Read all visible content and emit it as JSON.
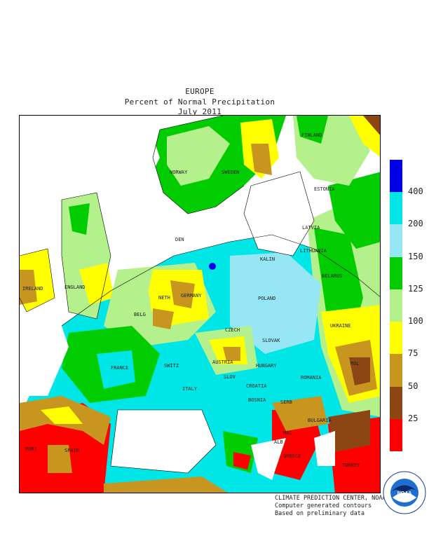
{
  "title": {
    "line1": "EUROPE",
    "line2": "Percent of Normal Precipitation",
    "line3": "July 2011"
  },
  "legend": {
    "ticks": [
      "400",
      "200",
      "150",
      "125",
      "100",
      "75",
      "50",
      "25"
    ],
    "colors": [
      "#0000e6",
      "#00e6e6",
      "#96e6f5",
      "#00cc00",
      "#b4f08c",
      "#ffff00",
      "#c8961e",
      "#8c4614",
      "#ff0000"
    ]
  },
  "countries": {
    "finland": "FINLAND",
    "norway": "NORWAY",
    "sweden": "SWEDEN",
    "estonia": "ESTONIA",
    "latvia": "LATVIA",
    "lithuania": "LITHUANIA",
    "kalin": "KALIN",
    "belarus": "BELARUS",
    "den": "DEN",
    "ireland": "IRELAND",
    "england": "ENGLAND",
    "neth": "NETH",
    "germany": "GERMANY",
    "poland": "POLAND",
    "belg": "BELG",
    "czech": "CZECH",
    "slovak": "SLOVAK",
    "ukraine": "UKRAINE",
    "mol": "MOL",
    "france": "FRANCE",
    "switz": "SWITZ",
    "austria": "AUSTRIA",
    "hungary": "HUNGARY",
    "romania": "ROMANIA",
    "slov": "SLOV",
    "croatia": "CROATIA",
    "italy": "ITALY",
    "bosnia": "BOSNIA",
    "serb": "SERB",
    "bulgaria": "BULGARIA",
    "mac": "MAC",
    "alb": "ALB",
    "greece": "GREECE",
    "turkey": "TURKEY",
    "port": "PORT",
    "spain": "SPAIN"
  },
  "credits": {
    "line1": "CLIMATE PREDICTION CENTER, NOAA",
    "line2": "Computer generated contours",
    "line3": "Based on preliminary data"
  },
  "logo": {
    "text": "NOAA",
    "ring_top": "NATIONAL OCEANIC AND ATMOSPHERIC ADMINISTRATION",
    "ring_bottom": "U.S. DEPARTMENT OF COMMERCE"
  }
}
